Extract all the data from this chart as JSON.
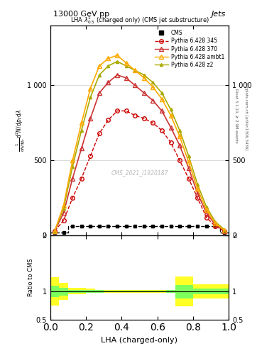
{
  "title_top": "13000 GeV pp",
  "title_right": "Jets",
  "plot_title": "LHA $\\lambda^1_{0.5}$ (charged only) (CMS jet substructure)",
  "xlabel": "LHA (charged-only)",
  "ylabel_main": "$\\frac{1}{\\mathrm{d}N/\\mathrm{d}p_T}\\mathrm{d}^2N/\\mathrm{d}p_T\\mathrm{d}\\lambda$",
  "ylabel_ratio": "Ratio to CMS",
  "watermark": "CMS_2021_I1920187",
  "rivet_text": "Rivet 3.1.10, ≥ 2.9M events",
  "mcplots_text": "mcplots.cern.ch [arXiv:1306.3436]",
  "lha_bins": [
    0.0,
    0.05,
    0.1,
    0.15,
    0.2,
    0.25,
    0.3,
    0.35,
    0.4,
    0.45,
    0.5,
    0.55,
    0.6,
    0.65,
    0.7,
    0.75,
    0.8,
    0.85,
    0.9,
    0.95,
    1.0
  ],
  "cms_values": [
    20,
    20,
    60,
    60,
    60,
    60,
    60,
    60,
    60,
    60,
    60,
    60,
    60,
    60,
    60,
    60,
    60,
    60,
    60,
    20
  ],
  "cms_color": "#000000",
  "p6_345_values": [
    30,
    100,
    250,
    380,
    530,
    680,
    770,
    830,
    830,
    800,
    780,
    750,
    700,
    620,
    500,
    380,
    250,
    120,
    60,
    30
  ],
  "p6_345_color": "#cc0000",
  "p6_370_values": [
    30,
    150,
    380,
    580,
    780,
    950,
    1020,
    1070,
    1050,
    1000,
    950,
    900,
    830,
    720,
    600,
    450,
    280,
    150,
    70,
    30
  ],
  "p6_370_color": "#cc3333",
  "p6_ambt1_values": [
    30,
    200,
    500,
    750,
    980,
    1130,
    1180,
    1200,
    1150,
    1100,
    1050,
    990,
    910,
    800,
    660,
    490,
    310,
    170,
    80,
    35
  ],
  "p6_ambt1_color": "#ffaa00",
  "p6_ambt1_yerr_hi": [
    0,
    0,
    0,
    0,
    0,
    0,
    0,
    0,
    0,
    0,
    25,
    0,
    0,
    0,
    0,
    0,
    0,
    0,
    0,
    0
  ],
  "p6_z2_values": [
    30,
    180,
    460,
    700,
    920,
    1070,
    1130,
    1160,
    1130,
    1100,
    1070,
    1020,
    950,
    840,
    700,
    530,
    340,
    190,
    90,
    40
  ],
  "p6_z2_color": "#aaaa00",
  "ratio_yellow_lo": [
    0.75,
    0.85,
    0.95,
    0.95,
    0.97,
    0.97,
    0.98,
    0.98,
    0.98,
    0.98,
    0.98,
    0.97,
    0.97,
    0.97,
    0.73,
    0.73,
    0.87,
    0.87,
    0.87,
    0.87
  ],
  "ratio_yellow_hi": [
    1.25,
    1.15,
    1.07,
    1.07,
    1.05,
    1.03,
    1.02,
    1.02,
    1.02,
    1.02,
    1.02,
    1.03,
    1.03,
    1.03,
    1.27,
    1.27,
    1.13,
    1.13,
    1.13,
    1.13
  ],
  "ratio_green_lo": [
    0.9,
    0.93,
    0.97,
    0.97,
    0.98,
    0.98,
    0.99,
    0.99,
    0.99,
    0.99,
    0.99,
    0.99,
    0.99,
    0.98,
    0.88,
    0.88,
    0.95,
    0.95,
    0.95,
    0.95
  ],
  "ratio_green_hi": [
    1.1,
    1.07,
    1.03,
    1.03,
    1.02,
    1.02,
    1.01,
    1.01,
    1.01,
    1.01,
    1.01,
    1.01,
    1.01,
    1.02,
    1.12,
    1.12,
    1.05,
    1.05,
    1.05,
    1.05
  ],
  "ylim_main": [
    0,
    1400
  ],
  "ylim_ratio": [
    0.5,
    2.0
  ],
  "background_color": "#ffffff"
}
